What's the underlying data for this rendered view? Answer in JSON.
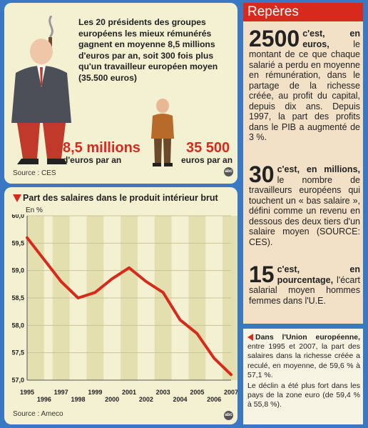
{
  "top_panel": {
    "intro": "Les 20 présidents des groupes européens les mieux rémunérés gagnent en moyenne 8,5 millions d'euros par an, soit 300 fois plus qu'un travailleur européen moyen (35.500 euros)",
    "left_amount": "8,5 millions",
    "left_unit": "d'euros par an",
    "right_amount": "35 500",
    "right_unit": "euros par an",
    "source": "Source : CES",
    "badge": "abc"
  },
  "chart_panel": {
    "title": "Part des salaires dans le produit intérieur brut",
    "source": "Source : Ameco",
    "badge": "abc"
  },
  "chart_data": {
    "type": "line",
    "title": "Part des salaires dans le produit intérieur brut",
    "ylabel": "En %",
    "xlabel": "",
    "x": [
      "1995",
      "1996",
      "1997",
      "1998",
      "1999",
      "2000",
      "2001",
      "2002",
      "2003",
      "2004",
      "2005",
      "2006",
      "2007"
    ],
    "x_row_top": [
      "1995",
      "1997",
      "1999",
      "2001",
      "2003",
      "2005",
      "2007"
    ],
    "x_row_bottom": [
      "1996",
      "1998",
      "2000",
      "2002",
      "2004",
      "2006"
    ],
    "values": [
      59.6,
      59.2,
      58.8,
      58.5,
      58.6,
      58.85,
      59.05,
      58.8,
      58.6,
      58.1,
      57.85,
      57.4,
      57.1
    ],
    "yticks": [
      "60,0",
      "59,5",
      "59,0",
      "58,5",
      "58,0",
      "57,5",
      "57,0"
    ],
    "ylim": [
      57.0,
      60.0
    ],
    "grid": true,
    "colors": {
      "line": "#d8291d",
      "band": "#e4dfae",
      "background": "#f4f1d2"
    }
  },
  "reperes": {
    "heading": "Repères",
    "items": [
      {
        "num": "2500",
        "lead": "c'est, en euros,",
        "text": "le montant de ce que chaque salarié a perdu en moyenne en rémunération, dans le partage de la richesse créée, au profit du capital, depuis dix ans. Depuis 1997, la part des profits dans le PIB a augmenté de 3 %."
      },
      {
        "num": "30",
        "lead": "c'est, en millions,",
        "text": "le nombre de travailleurs européens qui touchent un « bas salaire », défini comme un revenu en dessous des deux tiers d'un salaire moyen (SOURCE: CES)."
      },
      {
        "num": "15",
        "lead": "c'est, en pourcentage,",
        "text": "l'écart salarial moyen hommes femmes dans l'U.E."
      }
    ]
  },
  "summary": {
    "heading": "Dans l'Union européenne,",
    "text1": "entre 1995 et 2007, la part des salaires dans la richesse créée a reculé, en moyenne, de 59,6 % à 57,1 %.",
    "text2": "Le déclin a été plus fort dans les pays de la zone euro (de 59,4 % à 55,8 %)."
  }
}
